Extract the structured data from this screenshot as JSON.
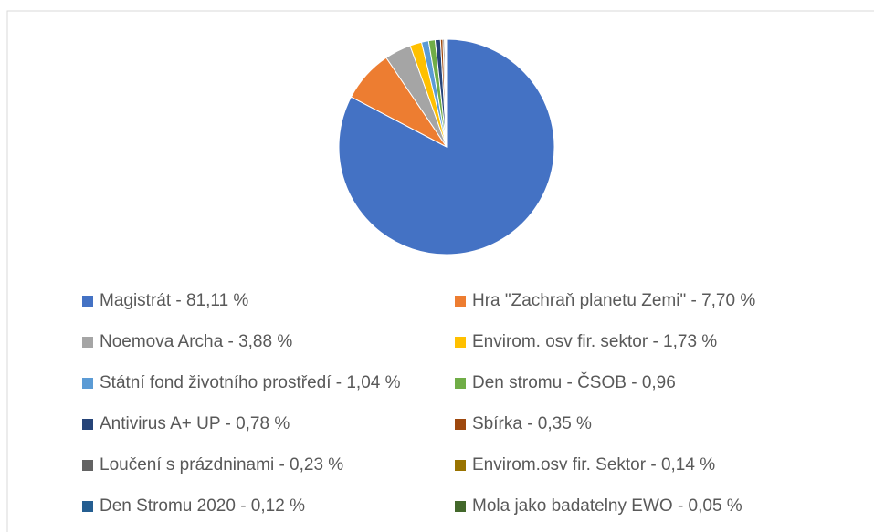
{
  "chart_data": {
    "type": "pie",
    "categories": [
      "Magistrát - 81,11 %",
      "Hra \"Zachraň planetu Zemi\" - 7,70 %",
      "Noemova Archa - 3,88 %",
      "Envirom. osv fir. sektor - 1,73 %",
      "Státní fond životního prostředí - 1,04 %",
      "Den stromu - ČSOB - 0,96",
      "Antivirus A+ UP - 0,78 %",
      "Sbírka - 0,35 %",
      "Loučení s prázdninami - 0,23 %",
      "Envirom.osv fir. Sektor - 0,14 %",
      "Den Stromu 2020 - 0,12 %",
      "Mola jako badatelny EWO - 0,05 %"
    ],
    "values": [
      81.11,
      7.7,
      3.88,
      1.73,
      1.04,
      0.96,
      0.78,
      0.35,
      0.23,
      0.14,
      0.12,
      0.05
    ],
    "colors": [
      "#4472c4",
      "#ed7d31",
      "#a5a5a5",
      "#ffc000",
      "#5b9bd5",
      "#70ad47",
      "#264478",
      "#9e480e",
      "#636363",
      "#997300",
      "#255e91",
      "#43682b"
    ],
    "legend": "bottom"
  }
}
